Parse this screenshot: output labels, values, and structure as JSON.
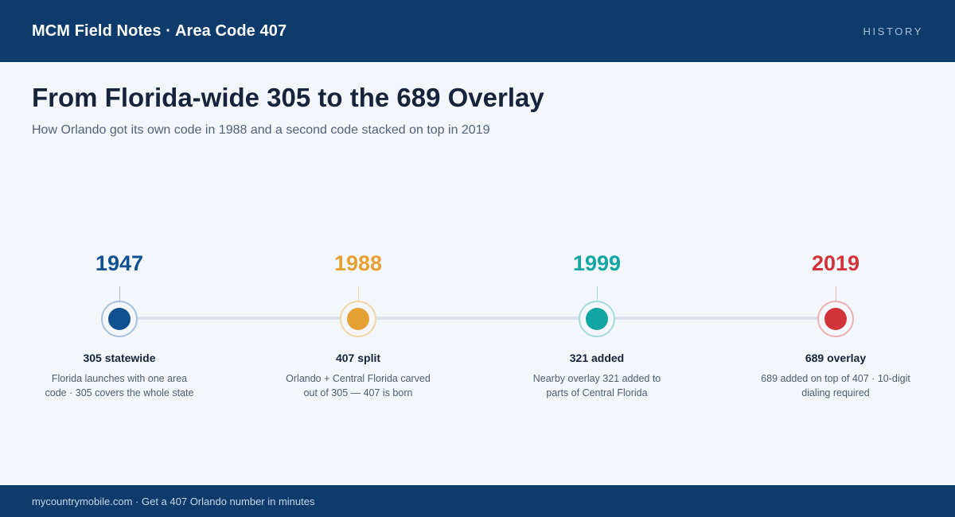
{
  "header": {
    "title": "MCM Field Notes · Area Code 407",
    "section": "HISTORY"
  },
  "main": {
    "title": "From Florida-wide 305 to the 689 Overlay",
    "subtitle": "How Orlando got its own code in 1988 and a second code stacked on top in 2019"
  },
  "timeline": {
    "events": [
      {
        "year": "1947",
        "label": "305 statewide",
        "description": "Florida launches with one area code · 305 covers the whole state",
        "color": "#0f5091",
        "ring_color": "#a9c1dc"
      },
      {
        "year": "1988",
        "label": "407 split",
        "description": "Orlando + Central Florida carved out of 305 — 407 is born",
        "color": "#e5a133",
        "ring_color": "#f1d6a6"
      },
      {
        "year": "1999",
        "label": "321 added",
        "description": "Nearby overlay 321 added to parts of Central Florida",
        "color": "#12a6a3",
        "ring_color": "#a6dbda"
      },
      {
        "year": "2019",
        "label": "689 overlay",
        "description": "689 added on top of 407 · 10-digit dialing required",
        "color": "#d13438",
        "ring_color": "#eeb0b2"
      }
    ]
  },
  "footer": {
    "text": "mycountrymobile.com · Get a 407 Orlando number in minutes"
  }
}
